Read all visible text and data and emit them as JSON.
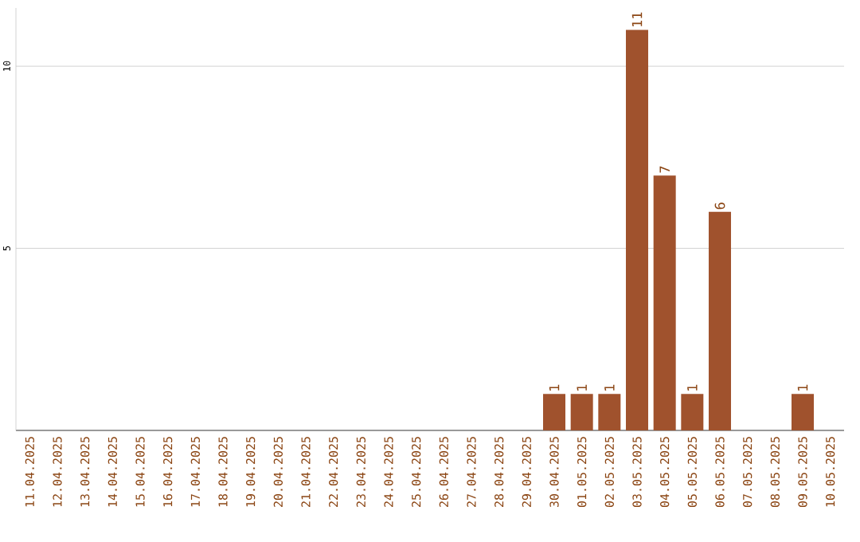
{
  "chart_data": {
    "type": "bar",
    "categories": [
      "11.04.2025",
      "12.04.2025",
      "13.04.2025",
      "14.04.2025",
      "15.04.2025",
      "16.04.2025",
      "17.04.2025",
      "18.04.2025",
      "19.04.2025",
      "20.04.2025",
      "21.04.2025",
      "22.04.2025",
      "23.04.2025",
      "24.04.2025",
      "25.04.2025",
      "26.04.2025",
      "27.04.2025",
      "28.04.2025",
      "29.04.2025",
      "30.04.2025",
      "01.05.2025",
      "02.05.2025",
      "03.05.2025",
      "04.05.2025",
      "05.05.2025",
      "06.05.2025",
      "07.05.2025",
      "08.05.2025",
      "09.05.2025",
      "10.05.2025"
    ],
    "values": [
      0,
      0,
      0,
      0,
      0,
      0,
      0,
      0,
      0,
      0,
      0,
      0,
      0,
      0,
      0,
      0,
      0,
      0,
      0,
      1,
      1,
      1,
      11,
      7,
      1,
      6,
      0,
      0,
      1,
      0
    ],
    "value_labels": [
      null,
      null,
      null,
      null,
      null,
      null,
      null,
      null,
      null,
      null,
      null,
      null,
      null,
      null,
      null,
      null,
      null,
      null,
      null,
      "1",
      "1",
      "1",
      "11",
      "7",
      "1",
      "6",
      null,
      null,
      "1",
      null
    ],
    "color": "#a0522d",
    "ylim": [
      0,
      11.6
    ],
    "yticks": [
      5,
      10
    ],
    "grid": "y"
  }
}
